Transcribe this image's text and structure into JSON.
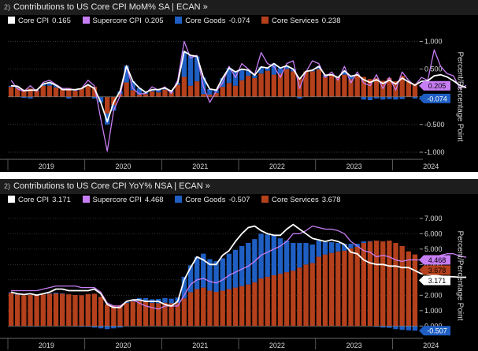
{
  "panels": [
    {
      "title_num": "2)",
      "title": "Contributions to US Core CPI MoM% SA | ECAN »",
      "legend": [
        {
          "name": "Core CPI",
          "value": "0.165",
          "color": "#ffffff"
        },
        {
          "name": "Supercore CPI",
          "value": "0.205",
          "color": "#c77df3"
        },
        {
          "name": "Core Goods",
          "value": "-0.074",
          "color": "#1f5fc4"
        },
        {
          "name": "Core Services",
          "value": "0.238",
          "color": "#b4401c"
        }
      ],
      "ylabel": "Percent/Percentage Point",
      "yticks": [
        "-1.000",
        "-0.500",
        "0.000",
        "0.500",
        "1.000"
      ],
      "xticks": [
        "2019",
        "2020",
        "2021",
        "2022",
        "2023",
        "2024"
      ],
      "tags": [
        {
          "text": "0.205",
          "color": "#c77df3",
          "text_color": "#000000"
        },
        {
          "text": "-0.074",
          "color": "#1f5fc4",
          "text_color": "#ffffff"
        }
      ]
    },
    {
      "title_num": "2)",
      "title": "Contributions to US Core CPI YoY% NSA | ECAN »",
      "legend": [
        {
          "name": "Core CPI",
          "value": "3.171",
          "color": "#ffffff"
        },
        {
          "name": "Supercore CPI",
          "value": "4.468",
          "color": "#c77df3"
        },
        {
          "name": "Core Goods",
          "value": "-0.507",
          "color": "#1f5fc4"
        },
        {
          "name": "Core Services",
          "value": "3.678",
          "color": "#b4401c"
        }
      ],
      "ylabel": "Percent/Percentage Point",
      "yticks": [
        "0.000",
        "1.000",
        "2.000",
        "3.000",
        "4.000",
        "5.000",
        "6.000",
        "7.000"
      ],
      "xticks": [
        "2019",
        "2020",
        "2021",
        "2022",
        "2023",
        "2024"
      ],
      "tags": [
        {
          "text": "4.468",
          "color": "#c77df3",
          "text_color": "#000000"
        },
        {
          "text": "3.678",
          "color": "#b4401c",
          "text_color": "#000000"
        },
        {
          "text": "3.171",
          "color": "#ffffff",
          "text_color": "#000000"
        },
        {
          "text": "-0.507",
          "color": "#1f5fc4",
          "text_color": "#ffffff"
        }
      ]
    }
  ],
  "chart_data": [
    {
      "type": "bar",
      "title": "Contributions to US Core CPI MoM% SA",
      "ylabel": "Percent/Percentage Point",
      "ylim": [
        -1.1,
        1.15
      ],
      "x_start": "2019-01",
      "x_end": "2024-04",
      "series": [
        {
          "name": "Core Services",
          "kind": "stacked-bar",
          "color": "#b4401c",
          "values": [
            0.18,
            0.16,
            0.13,
            0.15,
            0.11,
            0.2,
            0.2,
            0.17,
            0.13,
            0.16,
            0.11,
            0.15,
            0.2,
            0.18,
            0.0,
            -0.3,
            -0.15,
            0.05,
            0.26,
            0.12,
            0.04,
            0.05,
            0.1,
            0.08,
            0.13,
            0.08,
            0.22,
            0.36,
            0.2,
            0.28,
            0.05,
            0.04,
            0.07,
            0.18,
            0.25,
            0.2,
            0.3,
            0.38,
            0.34,
            0.42,
            0.47,
            0.4,
            0.42,
            0.5,
            0.46,
            0.35,
            0.46,
            0.46,
            0.5,
            0.36,
            0.4,
            0.35,
            0.4,
            0.32,
            0.4,
            0.36,
            0.32,
            0.34,
            0.29,
            0.34,
            0.28,
            0.38,
            0.27,
            0.24,
            0.3,
            0.33,
            0.4,
            0.45,
            0.35,
            0.33,
            0.24,
            0.238
          ]
        },
        {
          "name": "Core Goods",
          "kind": "stacked-bar",
          "color": "#1f5fc4",
          "values": [
            0.02,
            0.03,
            -0.02,
            -0.03,
            0.01,
            0.03,
            0.06,
            0.04,
            0.0,
            -0.03,
            0.02,
            0.0,
            0.02,
            -0.03,
            -0.1,
            -0.2,
            -0.1,
            0.05,
            0.3,
            0.16,
            0.12,
            0.03,
            0.03,
            0.05,
            0.03,
            0.02,
            0.03,
            0.46,
            0.55,
            0.45,
            0.3,
            0.1,
            0.05,
            0.16,
            0.27,
            0.25,
            0.2,
            0.1,
            0.05,
            0.12,
            0.05,
            0.2,
            0.1,
            0.06,
            0.04,
            -0.03,
            0.0,
            0.02,
            0.05,
            0.03,
            0.0,
            0.0,
            0.07,
            0.05,
            0.0,
            -0.05,
            -0.06,
            -0.03,
            -0.05,
            -0.04,
            -0.05,
            -0.04,
            0.0,
            -0.03,
            -0.02,
            -0.04,
            -0.02,
            -0.05,
            0.0,
            -0.04,
            -0.03,
            -0.074
          ]
        },
        {
          "name": "Core CPI",
          "kind": "line",
          "color": "#ffffff",
          "values": [
            0.2,
            0.19,
            0.11,
            0.12,
            0.12,
            0.23,
            0.26,
            0.21,
            0.13,
            0.13,
            0.13,
            0.15,
            0.22,
            0.15,
            -0.1,
            -0.45,
            -0.1,
            0.1,
            0.56,
            0.28,
            0.16,
            0.08,
            0.13,
            0.13,
            0.16,
            0.1,
            0.25,
            0.82,
            0.75,
            0.73,
            0.35,
            0.14,
            0.12,
            0.34,
            0.52,
            0.45,
            0.5,
            0.48,
            0.39,
            0.54,
            0.52,
            0.6,
            0.52,
            0.56,
            0.5,
            0.32,
            0.46,
            0.48,
            0.55,
            0.39,
            0.4,
            0.35,
            0.47,
            0.37,
            0.4,
            0.31,
            0.26,
            0.31,
            0.24,
            0.3,
            0.23,
            0.34,
            0.27,
            0.21,
            0.28,
            0.29,
            0.38,
            0.4,
            0.36,
            0.29,
            0.21,
            0.165
          ]
        },
        {
          "name": "Supercore CPI",
          "kind": "line",
          "color": "#c77df3",
          "values": [
            0.3,
            0.14,
            0.1,
            0.2,
            0.1,
            0.26,
            0.3,
            0.22,
            0.15,
            0.15,
            0.12,
            0.15,
            0.3,
            0.2,
            -0.4,
            -0.98,
            -0.25,
            0.02,
            0.55,
            0.15,
            0.05,
            0.06,
            0.18,
            0.12,
            0.18,
            0.06,
            0.3,
            1.0,
            0.7,
            0.75,
            0.18,
            -0.1,
            0.1,
            0.25,
            0.55,
            0.35,
            0.6,
            0.5,
            0.4,
            0.8,
            0.6,
            0.55,
            0.35,
            0.6,
            0.65,
            0.15,
            0.45,
            0.65,
            0.6,
            0.35,
            0.45,
            0.3,
            0.55,
            0.25,
            0.45,
            0.25,
            0.2,
            0.4,
            0.15,
            0.35,
            0.12,
            0.45,
            0.3,
            0.2,
            0.35,
            0.3,
            0.85,
            0.55,
            0.42,
            0.38,
            0.15,
            0.205
          ]
        }
      ]
    },
    {
      "type": "bar",
      "title": "Contributions to US Core CPI YoY% NSA",
      "ylabel": "Percent/Percentage Point",
      "ylim": [
        -0.7,
        7.4
      ],
      "x_start": "2019-01",
      "x_end": "2024-04",
      "series": [
        {
          "name": "Core Services",
          "kind": "stacked-bar",
          "color": "#b4401c",
          "values": [
            2.15,
            2.05,
            2.0,
            2.02,
            2.0,
            2.05,
            2.1,
            2.12,
            2.1,
            2.06,
            2.02,
            2.0,
            2.08,
            2.1,
            1.9,
            1.4,
            1.35,
            1.36,
            1.5,
            1.6,
            1.62,
            1.6,
            1.5,
            1.48,
            1.52,
            1.48,
            1.5,
            1.8,
            2.2,
            2.4,
            2.5,
            2.3,
            2.22,
            2.3,
            2.4,
            2.5,
            2.6,
            2.7,
            2.85,
            3.1,
            3.2,
            3.3,
            3.4,
            3.5,
            3.6,
            3.8,
            4.0,
            4.1,
            4.5,
            4.65,
            4.75,
            4.85,
            4.9,
            5.05,
            5.15,
            5.4,
            5.5,
            5.55,
            5.5,
            5.55,
            5.4,
            5.2,
            4.85,
            4.65,
            4.6,
            4.55,
            4.4,
            4.2,
            4.1,
            4.0,
            3.9,
            3.678
          ]
        },
        {
          "name": "Core Goods",
          "kind": "stacked-bar",
          "color": "#1f5fc4",
          "values": [
            0.05,
            0.02,
            0.0,
            -0.02,
            -0.02,
            0.0,
            0.03,
            0.05,
            0.03,
            0.0,
            -0.02,
            -0.05,
            -0.05,
            -0.1,
            -0.15,
            -0.2,
            -0.15,
            -0.1,
            0.05,
            0.12,
            0.2,
            0.22,
            0.24,
            0.28,
            0.3,
            0.3,
            0.35,
            1.4,
            1.75,
            2.1,
            2.2,
            2.05,
            2.0,
            2.1,
            2.3,
            2.45,
            2.6,
            2.7,
            2.8,
            2.9,
            2.75,
            2.6,
            2.3,
            2.05,
            1.8,
            1.6,
            1.4,
            1.2,
            1.05,
            0.8,
            0.7,
            0.55,
            0.45,
            0.3,
            0.2,
            0.1,
            0.02,
            -0.05,
            -0.1,
            -0.12,
            -0.2,
            -0.25,
            -0.28,
            -0.3,
            -0.35,
            -0.38,
            -0.4,
            -0.45,
            -0.48,
            -0.5,
            -0.5,
            -0.507
          ]
        },
        {
          "name": "Core CPI",
          "kind": "line",
          "color": "#ffffff",
          "values": [
            2.2,
            2.1,
            2.05,
            2.1,
            2.0,
            2.1,
            2.2,
            2.4,
            2.4,
            2.3,
            2.3,
            2.3,
            2.3,
            2.4,
            2.1,
            1.4,
            1.2,
            1.2,
            1.6,
            1.7,
            1.7,
            1.6,
            1.6,
            1.6,
            1.4,
            1.3,
            1.6,
            3.0,
            3.8,
            4.5,
            4.3,
            4.0,
            4.0,
            4.6,
            4.9,
            5.5,
            6.0,
            6.4,
            6.5,
            6.2,
            6.0,
            5.9,
            5.9,
            6.3,
            6.6,
            6.3,
            6.0,
            5.7,
            5.6,
            5.5,
            5.6,
            5.5,
            5.3,
            4.8,
            4.7,
            4.3,
            4.1,
            4.0,
            4.0,
            3.9,
            3.9,
            3.8,
            3.8,
            3.6,
            3.4,
            3.35,
            3.3,
            3.25,
            3.2,
            3.2,
            3.17,
            3.171
          ]
        },
        {
          "name": "Supercore CPI",
          "kind": "line",
          "color": "#c77df3",
          "values": [
            2.3,
            2.3,
            2.3,
            2.3,
            2.3,
            2.4,
            2.5,
            2.6,
            2.6,
            2.6,
            2.6,
            2.5,
            2.5,
            2.5,
            2.2,
            1.5,
            1.3,
            1.3,
            1.6,
            1.7,
            1.5,
            1.3,
            1.2,
            1.1,
            1.3,
            1.3,
            1.3,
            2.0,
            2.7,
            3.0,
            3.1,
            2.9,
            2.8,
            3.0,
            3.3,
            3.5,
            3.7,
            3.9,
            4.2,
            4.6,
            4.8,
            5.0,
            5.2,
            5.5,
            6.0,
            6.0,
            6.2,
            6.5,
            6.4,
            6.3,
            6.3,
            6.2,
            6.0,
            5.5,
            5.2,
            4.9,
            4.8,
            4.5,
            4.6,
            4.5,
            4.3,
            4.2,
            4.3,
            4.3,
            4.3,
            4.4,
            4.5,
            4.6,
            4.7,
            4.7,
            4.55,
            4.468
          ]
        }
      ]
    }
  ]
}
